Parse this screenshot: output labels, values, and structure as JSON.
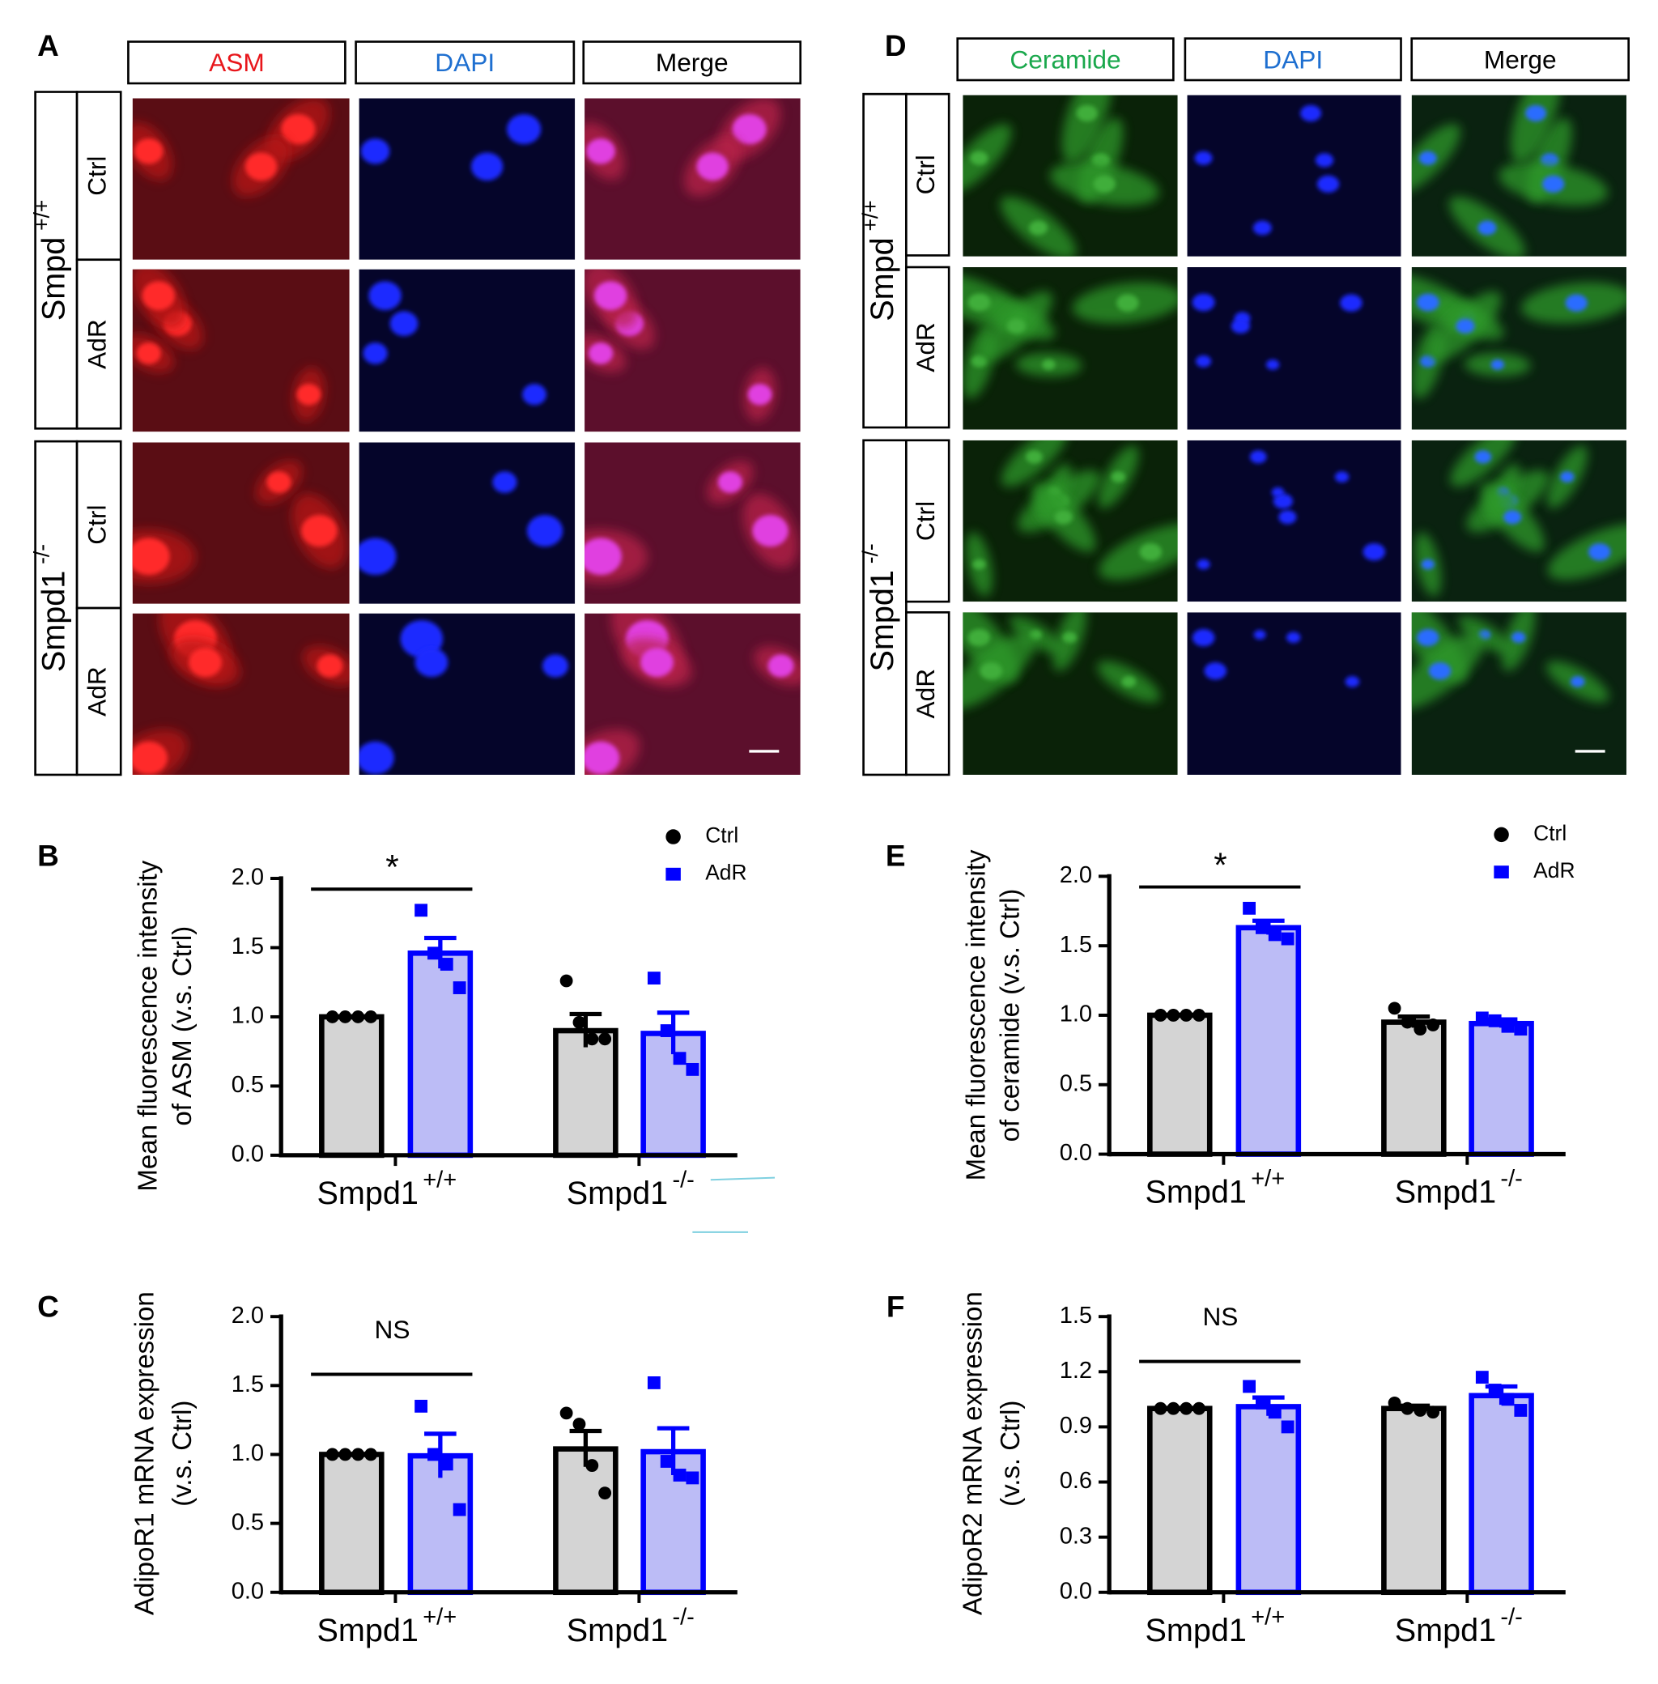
{
  "panels": [
    {
      "label": "A",
      "columns": [
        "ASM",
        "DAPI",
        "Merge"
      ],
      "groups": [
        {
          "label": "Smpd",
          "superscript": "+/+",
          "rows": [
            "Ctrl",
            "AdR"
          ]
        },
        {
          "label": "Smpd1",
          "superscript": "-/-",
          "rows": [
            "Ctrl",
            "AdR"
          ]
        }
      ]
    },
    {
      "label": "D",
      "columns": [
        "Ceramide",
        "DAPI",
        "Merge"
      ],
      "groups": [
        {
          "label": "Smpd",
          "superscript": "+/+",
          "rows": [
            "Ctrl",
            "AdR"
          ]
        },
        {
          "label": "Smpd1",
          "superscript": "-/-",
          "rows": [
            "Ctrl",
            "AdR"
          ]
        }
      ]
    }
  ],
  "chart_data": [
    {
      "type": "bar",
      "panel": "B",
      "ylabel": [
        "Mean fluorescence intensity",
        "of ASM (v.s. Ctrl)"
      ],
      "categories": [
        "Smpd1",
        "Smpd1"
      ],
      "category_superscripts": [
        "+/+",
        "-/-"
      ],
      "ylim": [
        0,
        2
      ],
      "yticks": [
        {
          "value": 0,
          "label": "0.0"
        },
        0.5,
        {
          "value": 1,
          "label": "1.0"
        },
        1.5,
        {
          "value": 2,
          "label": "2.0"
        }
      ],
      "annotation": "*",
      "legend": true,
      "series": [
        {
          "name": "Ctrl",
          "color": "#000000",
          "fill": "#d4d4d4",
          "values": [
            1.0,
            0.9
          ],
          "errors": [
            0,
            0.12
          ],
          "points": [
            [
              1,
              1,
              1,
              1
            ],
            [
              1.26,
              0.96,
              0.84,
              0.84
            ]
          ]
        },
        {
          "name": "AdR",
          "color": "#0000ff",
          "fill": "#bcbcf6",
          "values": [
            1.46,
            0.88
          ],
          "errors": [
            0.11,
            0.15
          ],
          "points": [
            [
              1.77,
              1.46,
              1.38,
              1.21
            ],
            [
              1.28,
              0.9,
              0.7,
              0.62
            ]
          ]
        }
      ]
    },
    {
      "type": "bar",
      "panel": "C",
      "ylabel": [
        "AdipoR1 mRNA expression",
        "(v.s. Ctrl)"
      ],
      "categories": [
        "Smpd1",
        "Smpd1"
      ],
      "category_superscripts": [
        "+/+",
        "-/-"
      ],
      "ylim": [
        0,
        2
      ],
      "yticks": [
        {
          "value": 0,
          "label": "0.0"
        },
        0.5,
        {
          "value": 1,
          "label": "1.0"
        },
        1.5,
        {
          "value": 2,
          "label": "2.0"
        }
      ],
      "annotation": "NS",
      "legend": false,
      "series": [
        {
          "name": "Ctrl",
          "color": "#000000",
          "fill": "#d4d4d4",
          "values": [
            1.0,
            1.04
          ],
          "errors": [
            0,
            0.13
          ],
          "points": [
            [
              1,
              1,
              1,
              1
            ],
            [
              1.3,
              1.22,
              0.92,
              0.72
            ]
          ]
        },
        {
          "name": "AdR",
          "color": "#0000ff",
          "fill": "#bcbcf6",
          "values": [
            0.99,
            1.02
          ],
          "errors": [
            0.16,
            0.17
          ],
          "points": [
            [
              1.35,
              1.0,
              0.93,
              0.6
            ],
            [
              1.52,
              0.95,
              0.85,
              0.83
            ]
          ]
        }
      ]
    },
    {
      "type": "bar",
      "panel": "E",
      "ylabel": [
        "Mean fluorescence intensity",
        "of ceramide (v.s. Ctrl)"
      ],
      "categories": [
        "Smpd1",
        "Smpd1"
      ],
      "category_superscripts": [
        "+/+",
        "-/-"
      ],
      "ylim": [
        0,
        2
      ],
      "yticks": [
        {
          "value": 0,
          "label": "0.0"
        },
        0.5,
        {
          "value": 1,
          "label": "1.0"
        },
        1.5,
        {
          "value": 2,
          "label": "2.0"
        }
      ],
      "annotation": "*",
      "legend": true,
      "series": [
        {
          "name": "Ctrl",
          "color": "#000000",
          "fill": "#d4d4d4",
          "values": [
            1.0,
            0.95
          ],
          "errors": [
            0,
            0.04
          ],
          "points": [
            [
              1,
              1,
              1,
              1
            ],
            [
              1.05,
              0.95,
              0.9,
              0.93
            ]
          ]
        },
        {
          "name": "AdR",
          "color": "#0000ff",
          "fill": "#bcbcf6",
          "values": [
            1.63,
            0.94
          ],
          "errors": [
            0.05,
            0.03
          ],
          "points": [
            [
              1.77,
              1.63,
              1.58,
              1.55
            ],
            [
              0.98,
              0.96,
              0.92,
              0.9
            ]
          ]
        }
      ]
    },
    {
      "type": "bar",
      "panel": "F",
      "ylabel": [
        "AdipoR2 mRNA expression",
        "(v.s. Ctrl)"
      ],
      "categories": [
        "Smpd1",
        "Smpd1"
      ],
      "category_superscripts": [
        "+/+",
        "-/-"
      ],
      "ylim": [
        0,
        1.5
      ],
      "yticks": [
        {
          "value": 0,
          "label": "0.0"
        },
        0.3,
        0.6,
        0.9,
        1.2,
        1.5
      ],
      "annotation": "NS",
      "legend": false,
      "series": [
        {
          "name": "Ctrl",
          "color": "#000000",
          "fill": "#d4d4d4",
          "values": [
            1.0,
            1.0
          ],
          "errors": [
            0,
            0.015
          ],
          "points": [
            [
              1,
              1,
              1,
              1
            ],
            [
              1.03,
              1.0,
              0.99,
              0.98
            ]
          ]
        },
        {
          "name": "AdR",
          "color": "#0000ff",
          "fill": "#bcbcf6",
          "values": [
            1.01,
            1.07
          ],
          "errors": [
            0.05,
            0.05
          ],
          "points": [
            [
              1.12,
              1.03,
              0.98,
              0.9
            ],
            [
              1.17,
              1.1,
              1.05,
              0.99
            ]
          ]
        }
      ]
    }
  ]
}
